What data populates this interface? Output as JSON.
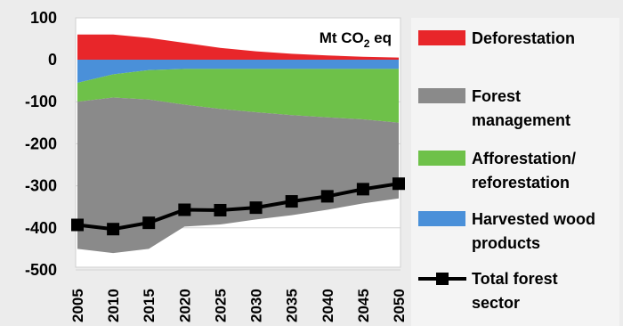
{
  "chart_data": {
    "type": "area",
    "unit_label": "Mt CO",
    "unit_sub": "2",
    "unit_suffix": " eq",
    "x": [
      2005,
      2010,
      2015,
      2020,
      2025,
      2030,
      2035,
      2040,
      2045,
      2050
    ],
    "ylim": [
      -520,
      100
    ],
    "yticks": [
      100,
      0,
      -100,
      -200,
      -300,
      -400,
      -500
    ],
    "ytick_labels": [
      "100",
      "0",
      "-100",
      "-200",
      "-300",
      "-400",
      "-500"
    ],
    "grid": "y",
    "legend_position": "right",
    "stacked_series": [
      {
        "name": "Deforestation",
        "color": "#e8262a",
        "values": [
          60,
          60,
          52,
          40,
          28,
          20,
          14,
          10,
          7,
          5
        ]
      },
      {
        "name": "Harvested wood products",
        "color": "#4a90d9",
        "values": [
          -55,
          -35,
          -25,
          -22,
          -22,
          -22,
          -22,
          -22,
          -22,
          -22
        ]
      },
      {
        "name": "Afforestation/ reforestation",
        "color": "#6ec149",
        "values": [
          -45,
          -55,
          -70,
          -85,
          -95,
          -103,
          -110,
          -115,
          -120,
          -128
        ]
      },
      {
        "name": "Forest management",
        "color": "#8a8a8a",
        "values": [
          -350,
          -370,
          -355,
          -290,
          -275,
          -255,
          -238,
          -220,
          -200,
          -180
        ]
      }
    ],
    "line_series": {
      "name": "Total forest sector",
      "color": "#000000",
      "values": [
        -393,
        -403,
        -388,
        -357,
        -358,
        -352,
        -337,
        -325,
        -308,
        -295
      ]
    },
    "legend": [
      {
        "label": "Deforestation",
        "color": "#e8262a",
        "kind": "box"
      },
      {
        "label": "Forest management",
        "color": "#8a8a8a",
        "kind": "box"
      },
      {
        "label": "Afforestation/ reforestation",
        "color": "#6ec149",
        "kind": "box"
      },
      {
        "label": "Harvested wood products",
        "color": "#4a90d9",
        "kind": "box"
      },
      {
        "label": "Total forest sector",
        "color": "#000000",
        "kind": "line"
      }
    ]
  }
}
